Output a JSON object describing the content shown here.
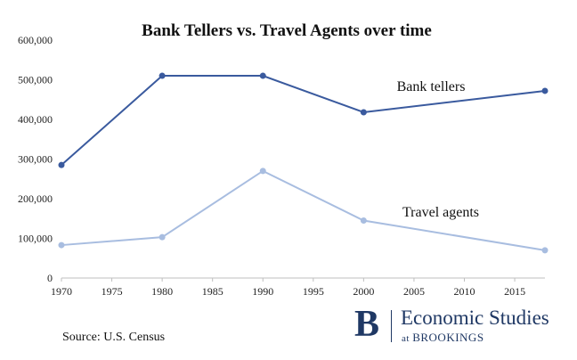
{
  "chart_data": {
    "type": "line",
    "title": "Bank Tellers vs. Travel Agents over time",
    "x_ticks": [
      1970,
      1975,
      1980,
      1985,
      1990,
      1995,
      2000,
      2005,
      2010,
      2015
    ],
    "xlim": [
      1970,
      2018
    ],
    "ylim": [
      0,
      600000
    ],
    "y_ticks": [
      "0",
      "100,000",
      "200,000",
      "300,000",
      "400,000",
      "500,000",
      "600,000"
    ],
    "y_tick_values": [
      0,
      100000,
      200000,
      300000,
      400000,
      500000,
      600000
    ],
    "grid": false,
    "series": [
      {
        "name": "Bank tellers",
        "color": "#3a5a9e",
        "points": [
          {
            "x": 1970,
            "y": 285000
          },
          {
            "x": 1980,
            "y": 510000
          },
          {
            "x": 1990,
            "y": 510000
          },
          {
            "x": 2000,
            "y": 418000
          },
          {
            "x": 2018,
            "y": 472000
          }
        ]
      },
      {
        "name": "Travel agents",
        "color": "#a8bde0",
        "points": [
          {
            "x": 1970,
            "y": 83000
          },
          {
            "x": 1980,
            "y": 103000
          },
          {
            "x": 1990,
            "y": 270000
          },
          {
            "x": 2000,
            "y": 145000
          },
          {
            "x": 2018,
            "y": 70000
          }
        ]
      }
    ]
  },
  "footer": {
    "source": "Source: U.S. Census",
    "brand_letter": "B",
    "brand_name": "Economic Studies",
    "brand_at": "at",
    "brand_org": "BROOKINGS"
  }
}
